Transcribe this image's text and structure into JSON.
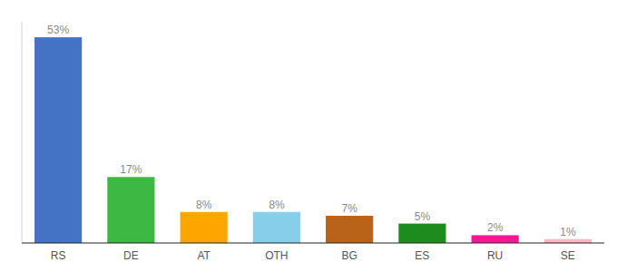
{
  "chart_data": {
    "type": "bar",
    "categories": [
      "RS",
      "DE",
      "AT",
      "OTH",
      "BG",
      "ES",
      "RU",
      "SE"
    ],
    "values": [
      53,
      17,
      8,
      8,
      7,
      5,
      2,
      1
    ],
    "value_labels": [
      "53%",
      "17%",
      "8%",
      "8%",
      "7%",
      "5%",
      "2%",
      "1%"
    ],
    "colors": [
      "#4472C4",
      "#3CB843",
      "#FFA500",
      "#87CEEB",
      "#B8621A",
      "#1E8B1E",
      "#FF1493",
      "#FFB6C1"
    ],
    "ylim": [
      0,
      57
    ],
    "data_labels": true,
    "tick_labels": "x"
  }
}
